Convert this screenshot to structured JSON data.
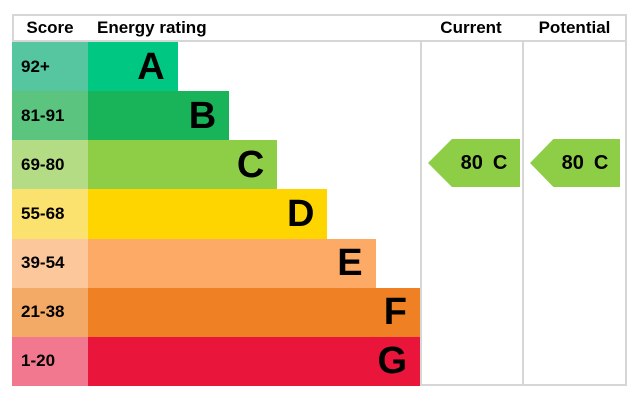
{
  "page": {
    "background": "#ffffff",
    "border_color": "#d6d6d6",
    "text_color": "#000000"
  },
  "header": {
    "score": "Score",
    "rating": "Energy rating",
    "current": "Current",
    "potential": "Potential"
  },
  "chart_data": {
    "type": "bar",
    "title": "EPC energy efficiency rating chart",
    "orientation": "horizontal",
    "bands": [
      {
        "letter": "A",
        "score": "92+",
        "color": "#00c781",
        "tint": "#55c6a0",
        "width_pct": 22.0
      },
      {
        "letter": "B",
        "score": "81-91",
        "color": "#19b459",
        "tint": "#5bc47e",
        "width_pct": 34.6
      },
      {
        "letter": "C",
        "score": "69-80",
        "color": "#8dce46",
        "tint": "#b3dc85",
        "width_pct": 46.4
      },
      {
        "letter": "D",
        "score": "55-68",
        "color": "#ffd500",
        "tint": "#fbe16d",
        "width_pct": 58.7
      },
      {
        "letter": "E",
        "score": "39-54",
        "color": "#fcaa65",
        "tint": "#fcc79b",
        "width_pct": 70.5
      },
      {
        "letter": "F",
        "score": "21-38",
        "color": "#ef8023",
        "tint": "#f3aa67",
        "width_pct": 82.5
      },
      {
        "letter": "G",
        "score": "1-20",
        "color": "#e9153b",
        "tint": "#f1788f",
        "width_pct": 94.9
      }
    ],
    "current": {
      "value": "80",
      "letter": "C",
      "band": "C",
      "color": "#8dce46"
    },
    "potential": {
      "value": "80",
      "letter": "C",
      "band": "C",
      "color": "#8dce46"
    }
  }
}
